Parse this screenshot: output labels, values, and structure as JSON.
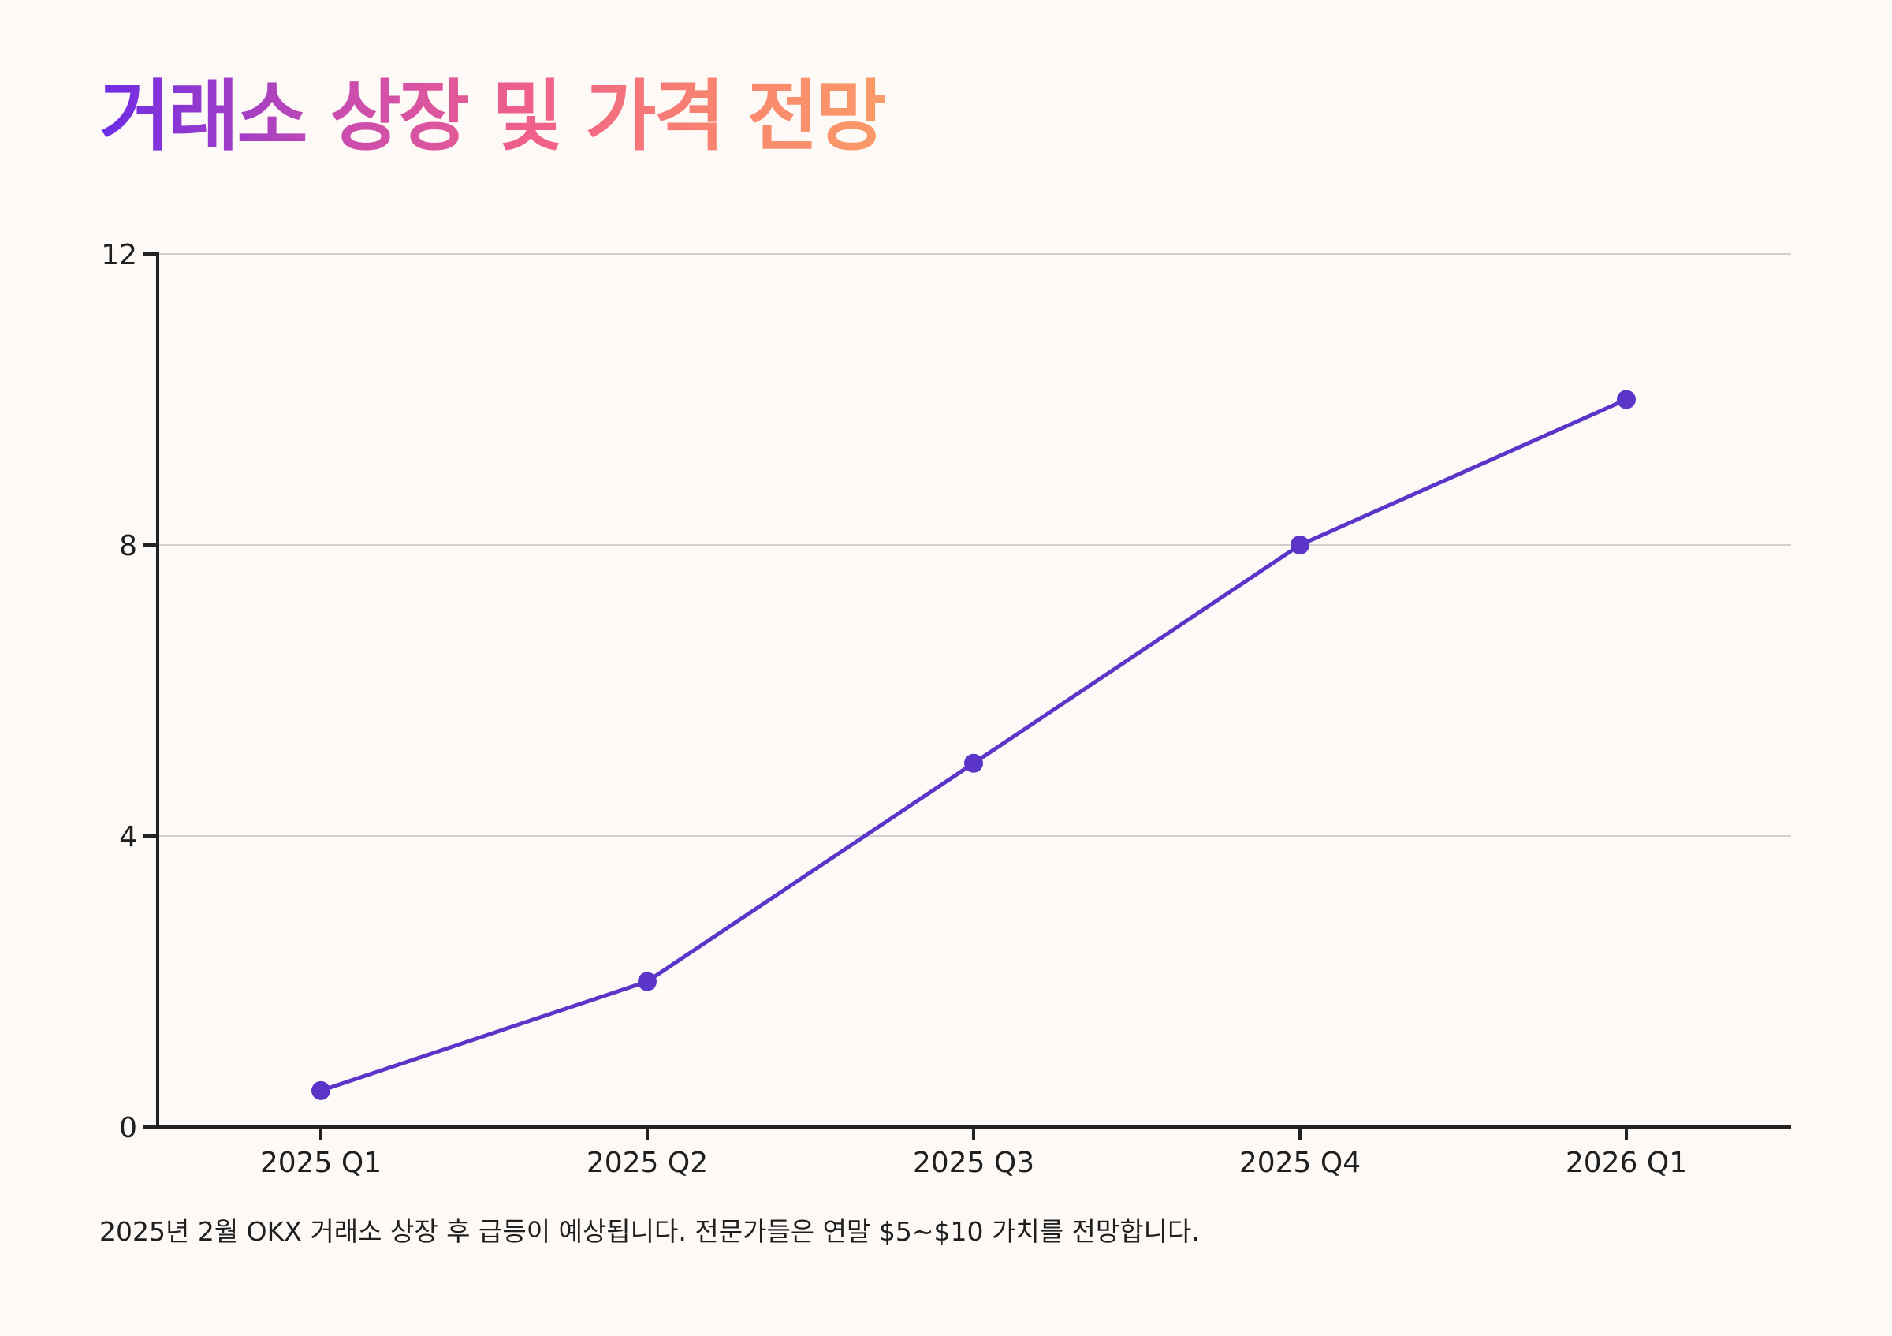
{
  "title": "거래소 상장 및 가격 전망",
  "caption": "2025년 2월 OKX 거래소 상장 후 급등이 예상됩니다. 전문가들은 연말 $5~$10 가치를 전망합니다.",
  "colors": {
    "line": "#5b35c8",
    "point": "#5b35c8",
    "grid": "#cfcfcf",
    "axis": "#222222",
    "background": "#fdf9f6",
    "title_gradient": [
      "#6c2ce6",
      "#f0608a",
      "#fa9a68"
    ]
  },
  "chart_data": {
    "type": "line",
    "title": "거래소 상장 및 가격 전망",
    "xlabel": "",
    "ylabel": "",
    "categories": [
      "2025 Q1",
      "2025 Q2",
      "2025 Q3",
      "2025 Q4",
      "2026 Q1"
    ],
    "series": [
      {
        "values": [
          0.5,
          2,
          5,
          8,
          10
        ]
      }
    ],
    "ylim": [
      0,
      12
    ],
    "yticks": [
      0,
      4,
      8,
      12
    ],
    "grid": true,
    "legend": "none"
  }
}
